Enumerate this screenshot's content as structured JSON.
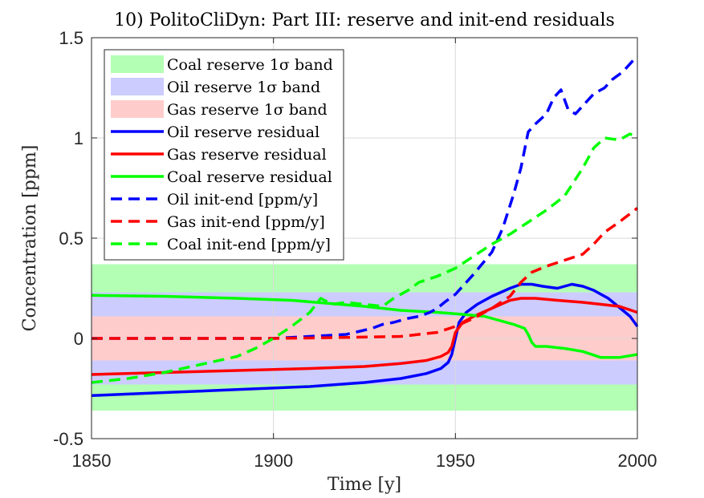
{
  "chart_data": {
    "type": "line",
    "title": "10) PolitoCliDyn: Part III: reserve and init-end residuals",
    "xlabel": "Time [y]",
    "ylabel": "Concentration [ppm]",
    "xlim": [
      1850,
      2000
    ],
    "ylim": [
      -0.5,
      1.5
    ],
    "xticks": [
      1850,
      1900,
      1950,
      2000
    ],
    "yticks": [
      -0.5,
      0,
      0.5,
      1,
      1.5
    ],
    "xtick_labels": [
      "1850",
      "1900",
      "1950",
      "2000"
    ],
    "ytick_labels": [
      "-0.5",
      "0",
      "0.5",
      "1",
      "1.5"
    ],
    "grid": true,
    "legend_position": "top-left",
    "bands": [
      {
        "name": "Coal reserve 1σ band",
        "lower": -0.36,
        "upper": 0.37,
        "color": "#b3ffb3"
      },
      {
        "name": "Oil reserve 1σ band",
        "lower": -0.23,
        "upper": 0.23,
        "color": "#ccccff"
      },
      {
        "name": "Gas reserve 1σ band",
        "lower": -0.11,
        "upper": 0.11,
        "color": "#ffcccc"
      }
    ],
    "series": [
      {
        "name": "Oil reserve residual",
        "color": "#0000ff",
        "style": "solid",
        "x": [
          1850,
          1870,
          1890,
          1910,
          1925,
          1935,
          1942,
          1946,
          1948,
          1949,
          1950,
          1951,
          1953,
          1956,
          1960,
          1965,
          1968,
          1971,
          1974,
          1978,
          1980,
          1982,
          1985,
          1988,
          1992,
          1996,
          1998,
          2000
        ],
        "y": [
          -0.285,
          -0.27,
          -0.255,
          -0.24,
          -0.22,
          -0.2,
          -0.175,
          -0.15,
          -0.12,
          -0.08,
          0.0,
          0.08,
          0.13,
          0.17,
          0.21,
          0.25,
          0.27,
          0.27,
          0.26,
          0.25,
          0.26,
          0.27,
          0.26,
          0.24,
          0.2,
          0.14,
          0.11,
          0.06
        ]
      },
      {
        "name": "Gas reserve residual",
        "color": "#ff0000",
        "style": "solid",
        "x": [
          1850,
          1870,
          1890,
          1910,
          1925,
          1935,
          1942,
          1946,
          1948,
          1949,
          1950,
          1952,
          1955,
          1960,
          1965,
          1968,
          1972,
          1978,
          1985,
          1990,
          1995,
          2000
        ],
        "y": [
          -0.18,
          -0.17,
          -0.16,
          -0.15,
          -0.14,
          -0.125,
          -0.11,
          -0.09,
          -0.07,
          -0.04,
          0.03,
          0.08,
          0.11,
          0.15,
          0.19,
          0.2,
          0.2,
          0.19,
          0.18,
          0.17,
          0.16,
          0.13
        ]
      },
      {
        "name": "Coal reserve residual",
        "color": "#00ff00",
        "style": "solid",
        "x": [
          1850,
          1870,
          1890,
          1905,
          1915,
          1925,
          1935,
          1945,
          1952,
          1958,
          1962,
          1966,
          1969,
          1970,
          1971,
          1972,
          1975,
          1980,
          1985,
          1990,
          1995,
          2000
        ],
        "y": [
          0.215,
          0.21,
          0.2,
          0.19,
          0.175,
          0.16,
          0.14,
          0.13,
          0.12,
          0.11,
          0.09,
          0.07,
          0.05,
          0.02,
          -0.02,
          -0.04,
          -0.04,
          -0.05,
          -0.065,
          -0.095,
          -0.095,
          -0.08
        ]
      },
      {
        "name": "Oil init-end [ppm/y]",
        "color": "#0000ff",
        "style": "dashed",
        "x": [
          1850,
          1880,
          1900,
          1910,
          1920,
          1927,
          1930,
          1933,
          1937,
          1940,
          1943,
          1945,
          1947,
          1950,
          1955,
          1960,
          1963,
          1966,
          1968,
          1970,
          1972,
          1975,
          1977,
          1979,
          1981,
          1983,
          1985,
          1988,
          1991,
          1993,
          1996,
          2000
        ],
        "y": [
          0.0,
          0.0,
          0.0,
          0.01,
          0.02,
          0.05,
          0.07,
          0.08,
          0.1,
          0.11,
          0.13,
          0.15,
          0.18,
          0.22,
          0.32,
          0.43,
          0.55,
          0.72,
          0.85,
          1.03,
          1.07,
          1.12,
          1.2,
          1.24,
          1.14,
          1.12,
          1.16,
          1.22,
          1.25,
          1.29,
          1.33,
          1.41
        ]
      },
      {
        "name": "Gas init-end [ppm/y]",
        "color": "#ff0000",
        "style": "dashed",
        "x": [
          1850,
          1880,
          1900,
          1920,
          1935,
          1945,
          1950,
          1955,
          1960,
          1965,
          1968,
          1971,
          1975,
          1980,
          1985,
          1988,
          1991,
          1995,
          2000
        ],
        "y": [
          0.0,
          0.0,
          0.0,
          0.005,
          0.01,
          0.03,
          0.06,
          0.1,
          0.15,
          0.21,
          0.28,
          0.33,
          0.36,
          0.39,
          0.42,
          0.47,
          0.53,
          0.58,
          0.65
        ]
      },
      {
        "name": "Coal init-end [ppm/y]",
        "color": "#00ff00",
        "style": "dashed",
        "x": [
          1850,
          1860,
          1870,
          1880,
          1890,
          1895,
          1900,
          1905,
          1910,
          1913,
          1916,
          1920,
          1925,
          1930,
          1933,
          1937,
          1940,
          1945,
          1950,
          1955,
          1960,
          1965,
          1970,
          1975,
          1980,
          1985,
          1988,
          1991,
          1995,
          1998,
          2000
        ],
        "y": [
          -0.22,
          -0.2,
          -0.17,
          -0.13,
          -0.09,
          -0.05,
          0.0,
          0.06,
          0.13,
          0.2,
          0.17,
          0.18,
          0.17,
          0.16,
          0.2,
          0.24,
          0.28,
          0.31,
          0.35,
          0.41,
          0.47,
          0.52,
          0.58,
          0.64,
          0.71,
          0.85,
          0.95,
          1.0,
          0.99,
          1.02,
          1.0
        ]
      }
    ]
  }
}
